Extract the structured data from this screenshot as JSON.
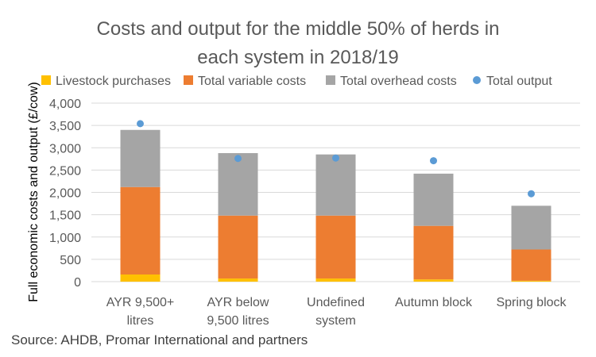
{
  "chart_data": {
    "type": "bar",
    "stacked": true,
    "title_lines": [
      "Costs and output for the middle 50% of herds in",
      "each system in 2018/19"
    ],
    "ylabel": "Full economic costs and output (£/cow)",
    "xlabel": "",
    "ylim": [
      0,
      4000
    ],
    "yticks": [
      "0",
      "500",
      "1,000",
      "1,500",
      "2,000",
      "2,500",
      "3,000",
      "3,500",
      "4,000"
    ],
    "ytick_values": [
      0,
      500,
      1000,
      1500,
      2000,
      2500,
      3000,
      3500,
      4000
    ],
    "grid": true,
    "legend_position": "top",
    "categories": [
      [
        "AYR 9,500+",
        "litres"
      ],
      [
        "AYR below",
        "9,500 litres"
      ],
      [
        "Undefined",
        "system"
      ],
      [
        "Autumn block"
      ],
      [
        "Spring block"
      ]
    ],
    "series": [
      {
        "name": "Livestock purchases",
        "kind": "bar",
        "color": "#FFC000",
        "values": [
          160,
          70,
          70,
          50,
          20
        ]
      },
      {
        "name": "Total variable costs",
        "kind": "bar",
        "color": "#ED7D31",
        "values": [
          1960,
          1410,
          1410,
          1200,
          700
        ]
      },
      {
        "name": "Total overhead costs",
        "kind": "bar",
        "color": "#A5A5A5",
        "values": [
          1280,
          1400,
          1370,
          1170,
          980
        ]
      },
      {
        "name": "Total output",
        "kind": "marker",
        "color": "#5B9BD5",
        "values": [
          3540,
          2760,
          2770,
          2710,
          1970
        ]
      }
    ]
  },
  "source": "Source: AHDB, Promar International and partners"
}
